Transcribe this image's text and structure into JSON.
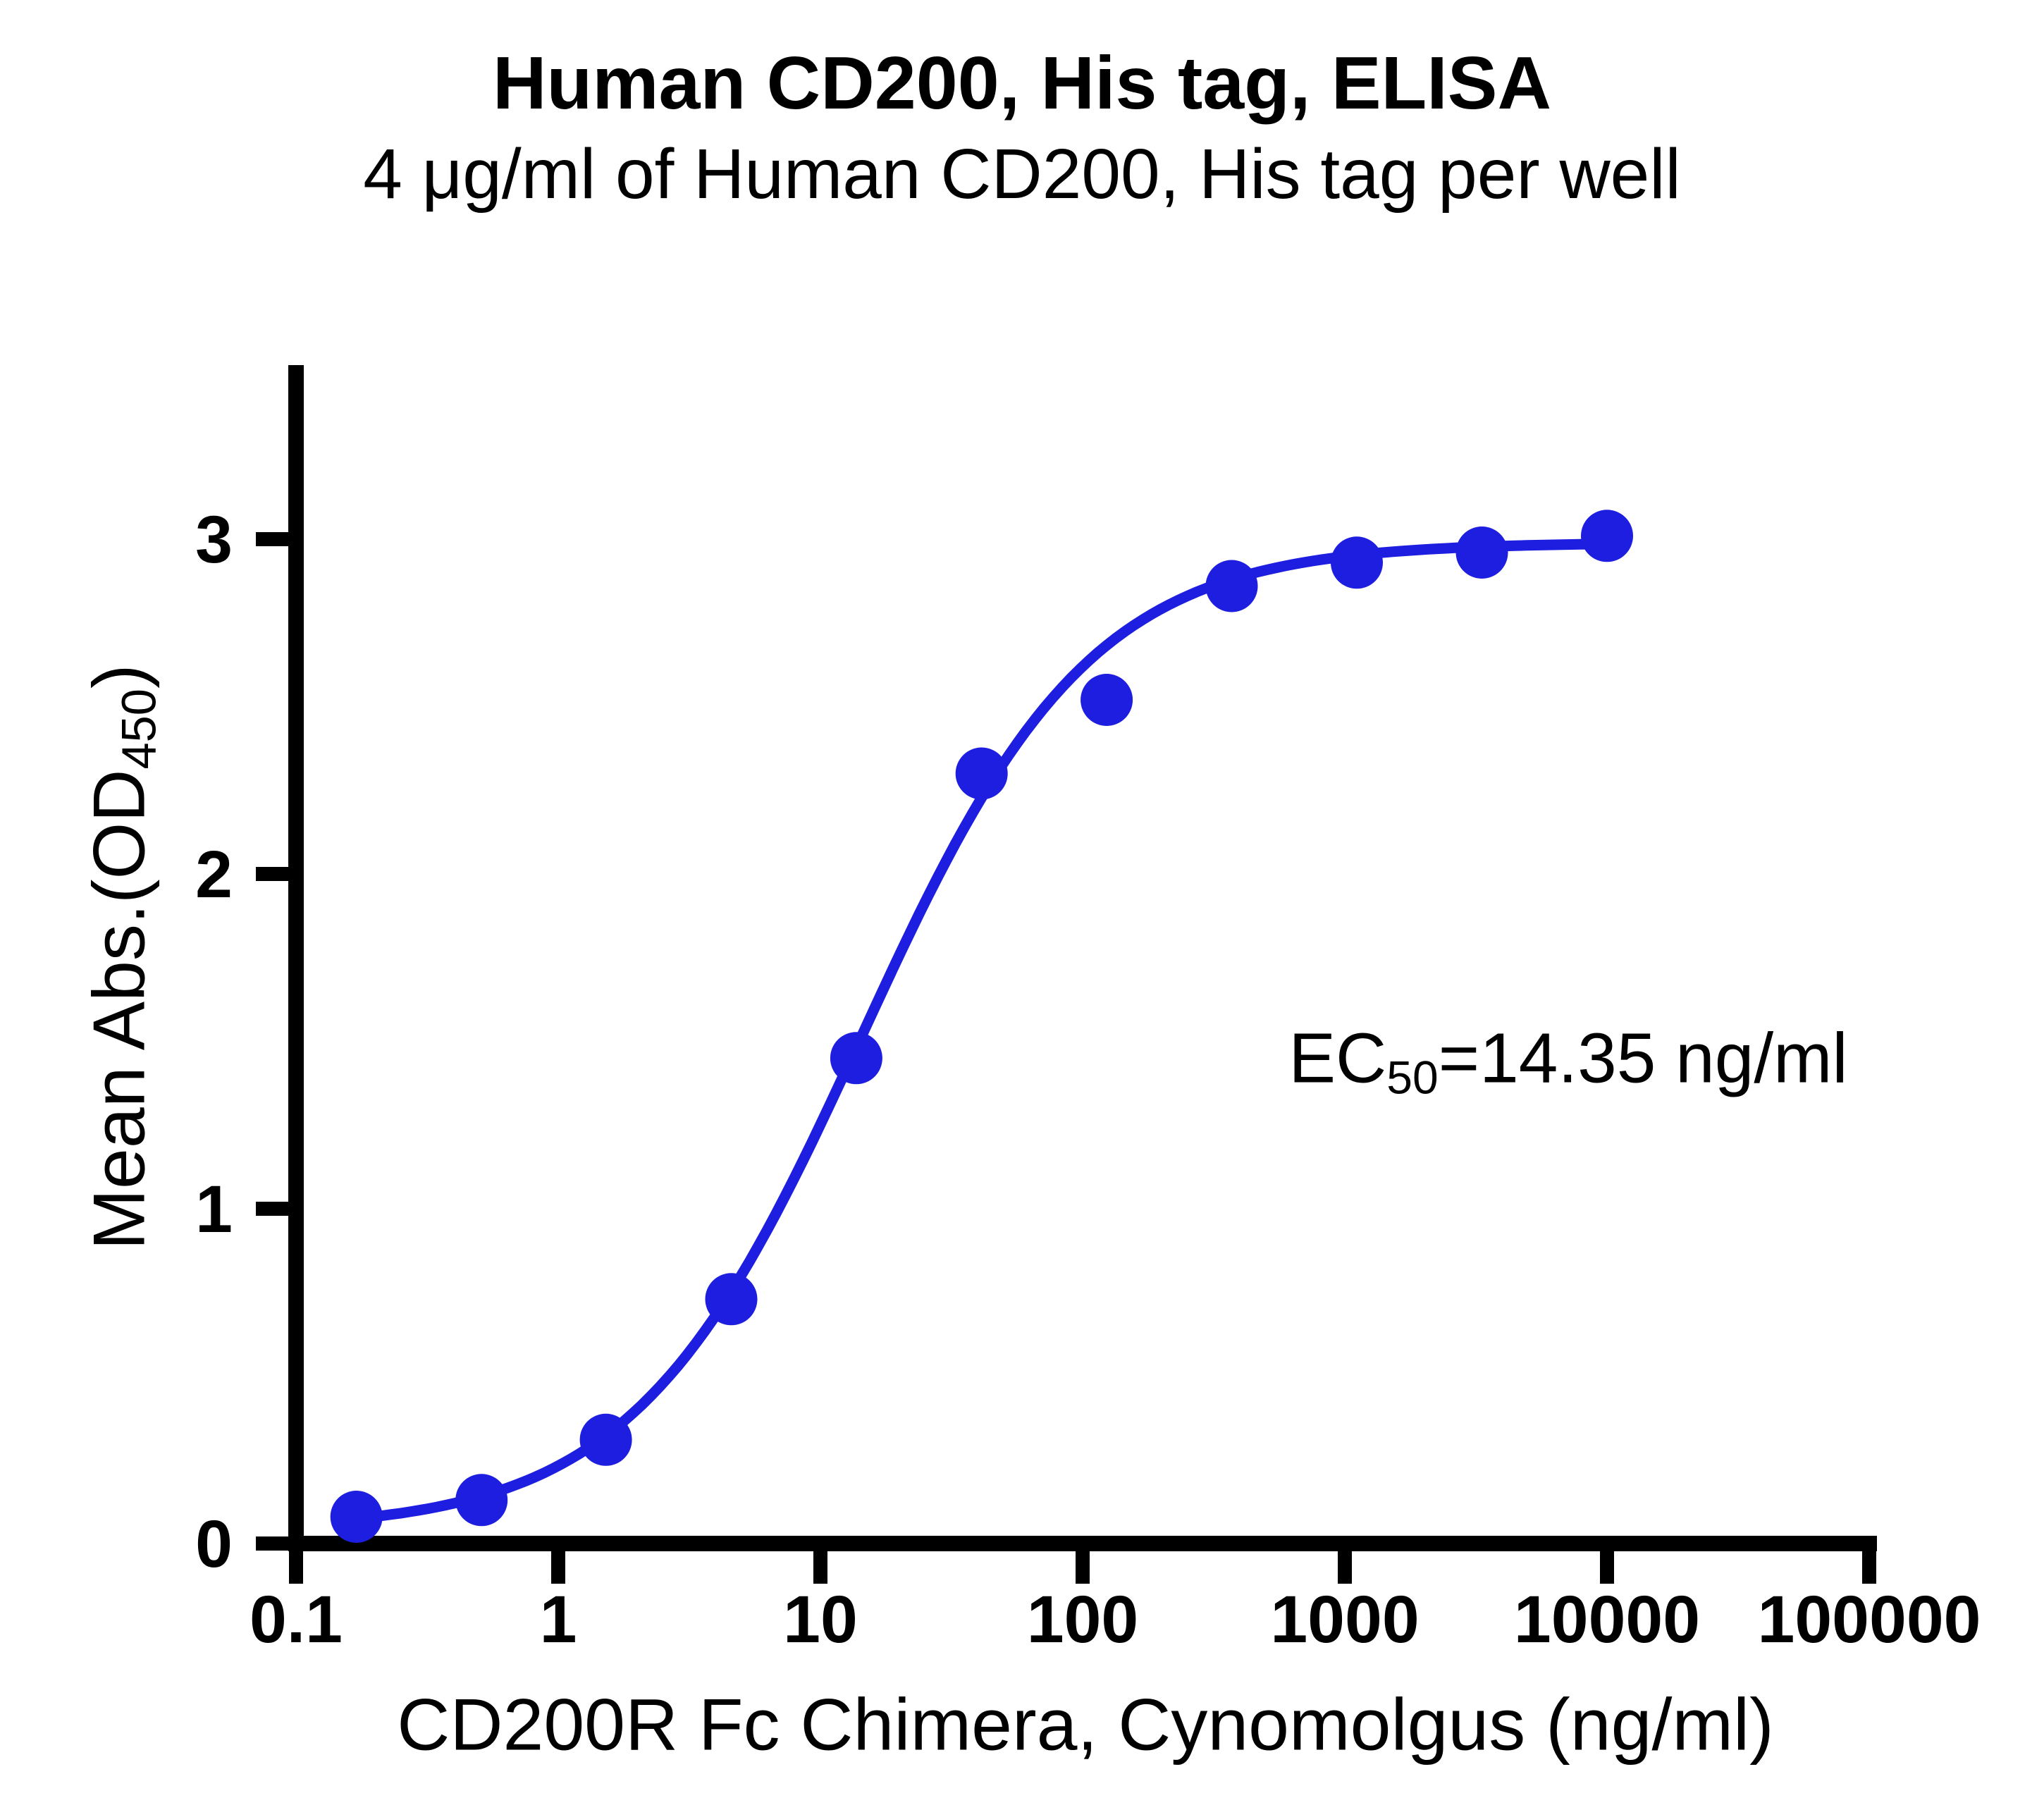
{
  "chart_data": {
    "type": "scatter",
    "title": "Human CD200, His tag, ELISA",
    "subtitle": "4 μg/ml of Human CD200, His tag per well",
    "xlabel": "CD200R Fc Chimera, Cynomolgus (ng/ml)",
    "ylabel": "Mean Abs.(OD450)",
    "ylabel_parts": {
      "prefix": "Mean Abs.(OD",
      "sub": "450",
      "suffix": ")"
    },
    "annotation": "EC50=14.35 ng/ml",
    "annotation_parts": {
      "prefix": "EC",
      "sub": "50",
      "suffix": "=14.35 ng/ml"
    },
    "xscale": "log",
    "xlim": [
      0.1,
      100000
    ],
    "ylim": [
      0,
      3.52
    ],
    "xticks": [
      0.1,
      1,
      10,
      100,
      1000,
      10000,
      100000
    ],
    "xtick_labels": [
      "0.1",
      "1",
      "10",
      "100",
      "1000",
      "10000",
      "100000"
    ],
    "yticks": [
      0,
      1,
      2,
      3
    ],
    "ytick_labels": [
      "0",
      "1",
      "2",
      "3"
    ],
    "x": [
      0.17,
      0.51,
      1.52,
      4.57,
      13.7,
      41.2,
      123.5,
      370.4,
      1111,
      3333,
      10000
    ],
    "y": [
      0.08,
      0.13,
      0.31,
      0.73,
      1.45,
      2.3,
      2.52,
      2.86,
      2.93,
      2.96,
      3.01
    ],
    "fit": {
      "model": "4PL",
      "bottom": 0.04,
      "top": 2.99,
      "ec50": 14.35,
      "hill": 1.0
    },
    "curve_x_range": [
      0.17,
      10000
    ],
    "grid": "off",
    "legend": "none",
    "point_color": "#1E1EE0",
    "line_color": "#1E1EE0",
    "axis_color": "#000000",
    "background_color": "#FFFFFF"
  }
}
